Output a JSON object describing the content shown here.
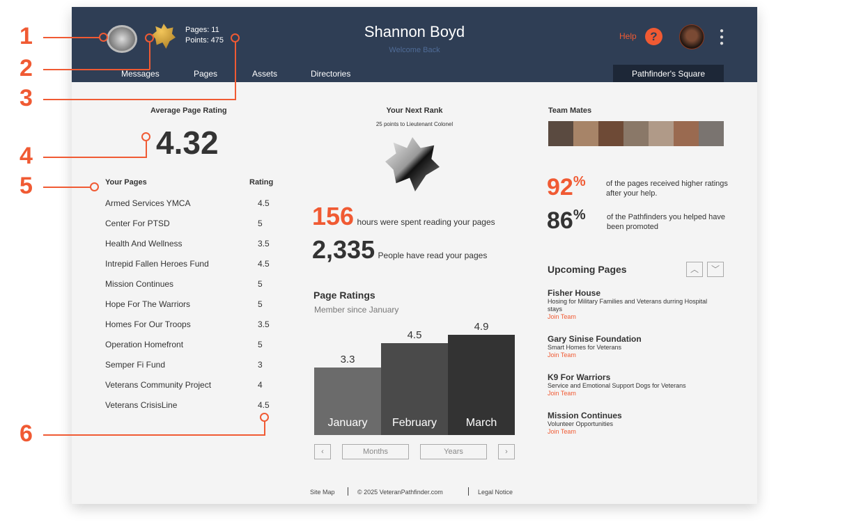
{
  "annotations": [
    "1",
    "2",
    "3",
    "4",
    "5",
    "6"
  ],
  "header": {
    "pages_label": "Pages: 11",
    "points_label": "Points:  475",
    "user_name": "Shannon Boyd",
    "welcome": "Welcome Back",
    "help": "Help",
    "nav": [
      "Messages",
      "Pages",
      "Assets",
      "Directories"
    ],
    "square_button": "Pathfinder's Square"
  },
  "left": {
    "avg_title": "Average Page Rating",
    "avg_value": "4.32",
    "col_pages": "Your Pages",
    "col_rating": "Rating",
    "pages": [
      {
        "name": "Armed Services YMCA",
        "rating": "4.5"
      },
      {
        "name": "Center For PTSD",
        "rating": "5"
      },
      {
        "name": "Health And Wellness",
        "rating": "3.5"
      },
      {
        "name": "Intrepid Fallen Heroes Fund",
        "rating": "4.5"
      },
      {
        "name": "Mission Continues",
        "rating": "5"
      },
      {
        "name": "Hope For The Warriors",
        "rating": "5"
      },
      {
        "name": "Homes For Our Troops",
        "rating": "3.5"
      },
      {
        "name": "Operation Homefront",
        "rating": "5"
      },
      {
        "name": "Semper Fi Fund",
        "rating": "3"
      },
      {
        "name": "Veterans Community Project",
        "rating": "4"
      },
      {
        "name": "Veterans CrisisLine",
        "rating": "4.5"
      }
    ]
  },
  "middle": {
    "rank_title": "Your Next Rank",
    "rank_sub": "25 points to Lieutenant Colonel",
    "hours_value": "156",
    "hours_text": "hours were spent reading your pages",
    "people_value": "2,335",
    "people_text": "People have read your pages",
    "ratings_title": "Page Ratings",
    "member_since": "Member since January",
    "months_btn": "Months",
    "years_btn": "Years"
  },
  "chart_data": {
    "type": "bar",
    "categories": [
      "January",
      "February",
      "March"
    ],
    "values": [
      3.3,
      4.5,
      4.9
    ],
    "value_labels": [
      "3.3",
      "4.5",
      "4.9"
    ],
    "colors": [
      "#6b6b6b",
      "#4a4a4a",
      "#333333"
    ],
    "ylim": [
      0,
      5
    ]
  },
  "right": {
    "team_title": "Team Mates",
    "stat1_value": "92",
    "stat1_unit": "%",
    "stat1_text": "of the pages received higher ratings after your help.",
    "stat2_value": "86",
    "stat2_unit": "%",
    "stat2_text": "of the Pathfinders you helped have been promoted",
    "upcoming_title": "Upcoming Pages",
    "upcoming": [
      {
        "title": "Fisher House",
        "desc": "Hosing for Military Families and Veterans durring Hospital stays",
        "link": "Join Team"
      },
      {
        "title": "Gary Sinise Foundation",
        "desc": "Smart Homes for Veterans",
        "link": "Join Team"
      },
      {
        "title": "K9 For Warriors",
        "desc": "Service and Emotional Support Dogs for Veterans",
        "link": "Join Team"
      },
      {
        "title": "Mission Continues",
        "desc": "Volunteer Opportunities",
        "link": "Join Team"
      }
    ]
  },
  "footer": {
    "sitemap": "Site Map",
    "copyright": "© 2025 VeteranPathfinder.com",
    "legal": "Legal Notice"
  },
  "colors": {
    "header": "#2f3e55",
    "accent": "#f05a33",
    "background": "#f4f4f4"
  }
}
